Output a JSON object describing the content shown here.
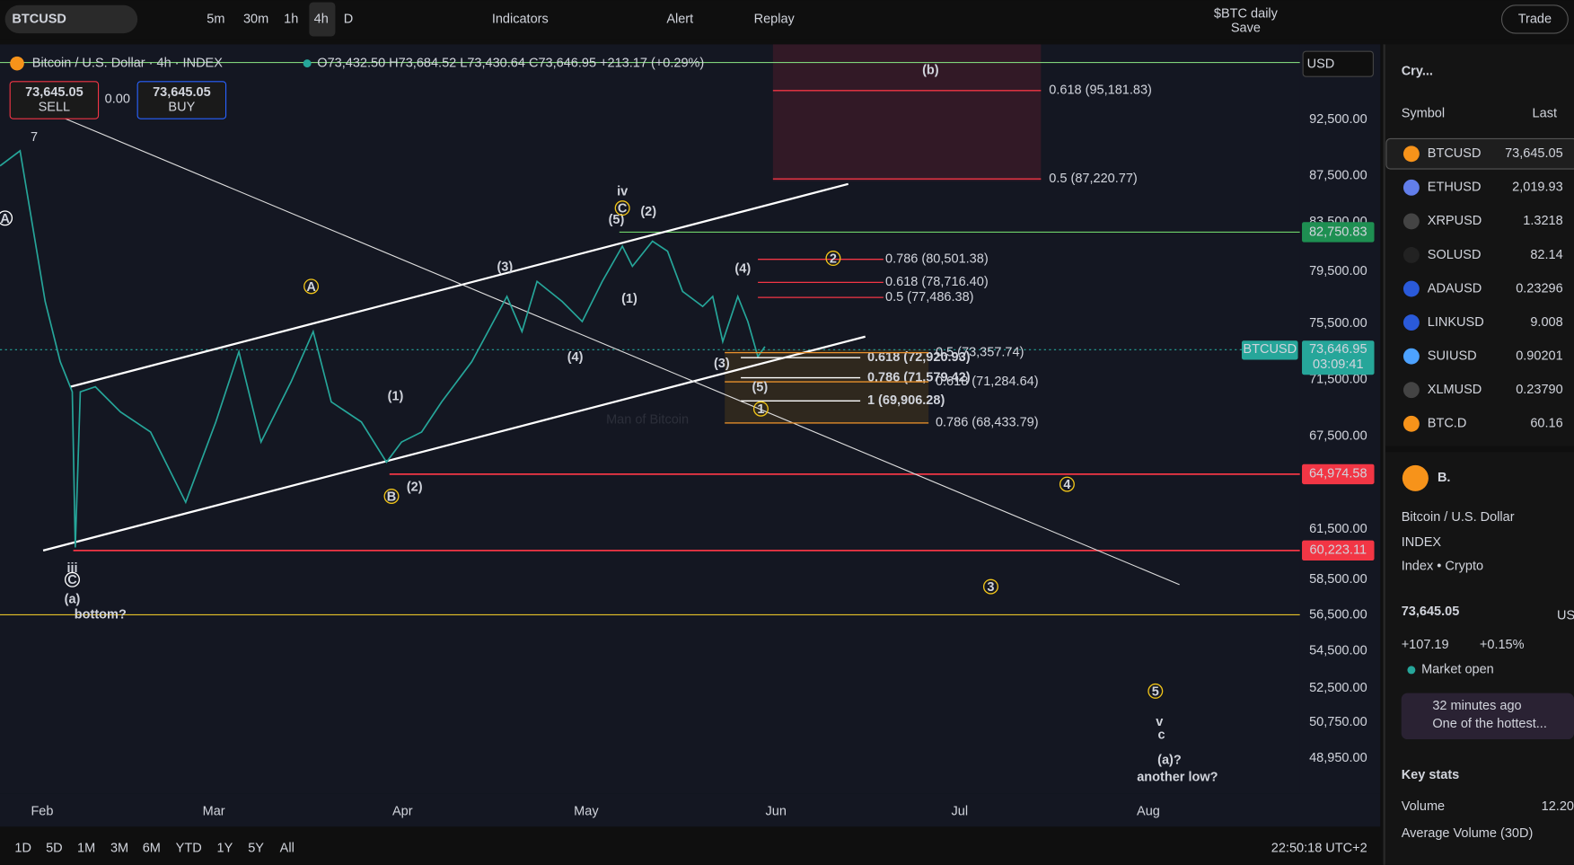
{
  "toolbar": {
    "symbol": "BTCUSD",
    "intervals": [
      "5m",
      "30m",
      "1h",
      "4h",
      "D"
    ],
    "indicators": "Indicators",
    "alert": "Alert",
    "replay": "Replay",
    "layout_name": "$BTC daily",
    "save": "Save",
    "trade": "Trade"
  },
  "legend": {
    "title": "Bitcoin / U.S. Dollar · 4h · INDEX",
    "ohlc": "O73,432.50 H73,684.52 L73,430.64 C73,646.95 +213.17 (+0.29%)",
    "sell_price": "73,645.05",
    "sell": "SELL",
    "spread": "0.00",
    "buy_price": "73,645.05",
    "buy": "BUY",
    "indicator_count": "7"
  },
  "currency": "USD",
  "price_axis": [
    "92,500.00",
    "87,500.00",
    "83,500.00",
    "79,500.00",
    "75,500.00",
    "71,500.00",
    "67,500.00",
    "61,500.00",
    "58,500.00",
    "56,500.00",
    "54,500.00",
    "52,500.00",
    "50,750.00",
    "48,950.00"
  ],
  "price_tags": [
    "82,750.83",
    "64,974.58",
    "60,223.11"
  ],
  "current": {
    "symbol": "BTCUSD",
    "price": "73,646.95",
    "countdown": "03:09:41"
  },
  "time_axis": [
    "Feb",
    "Mar",
    "Apr",
    "May",
    "Jun",
    "Jul",
    "Aug"
  ],
  "fib_levels": [
    "0.618 (95,181.83)",
    "0.5 (87,220.77)",
    "0.786 (80,501.38)",
    "0.618 (78,716.40)",
    "0.5 (77,486.38)",
    "0.618 (72,920.93)",
    "0.786 (71,579.42)",
    "1 (69,906.28)",
    "0.5 (73,357.74)",
    "0.618 (71,284.64)",
    "0.786 (68,433.79)"
  ],
  "wave_labels": [
    "(3)",
    "(1)",
    "(2)",
    "(4)",
    "(5)",
    "(2)",
    "(4)",
    "(1)",
    "(3)",
    "(5)",
    "iv",
    "(b)",
    "iii",
    "(a)",
    "bottom?",
    "v",
    "c",
    "(a)?",
    "another low?"
  ],
  "circled_labels": [
    "A",
    "B",
    "C",
    "2",
    "4",
    "3",
    "5",
    "1",
    "A",
    "C"
  ],
  "watermark": "Man of Bitcoin",
  "ranges": [
    "1D",
    "5D",
    "1M",
    "3M",
    "6M",
    "YTD",
    "1Y",
    "5Y",
    "All"
  ],
  "clock": "22:50:18 UTC+2",
  "watchlist": {
    "title": "Cry...",
    "columns": [
      "Symbol",
      "Last"
    ],
    "rows": [
      [
        "BTCUSD",
        "73,645.05"
      ],
      [
        "ETHUSD",
        "2,019.93"
      ],
      [
        "XRPUSD",
        "1.3218"
      ],
      [
        "SOLUSD",
        "82.14"
      ],
      [
        "ADAUSD",
        "0.23296"
      ],
      [
        "LINKUSD",
        "9.008"
      ],
      [
        "SUIUSD",
        "0.90201"
      ],
      [
        "XLMUSD",
        "0.23790"
      ],
      [
        "BTC.D",
        "60.16"
      ]
    ]
  },
  "details": {
    "short": "B.",
    "name": "Bitcoin / U.S. Dollar",
    "exchange": "INDEX",
    "kind": "Index • Crypto",
    "price": "73,645.05",
    "currency": "US",
    "change": "+107.19",
    "change_pct": "+0.15%",
    "status": "Market open",
    "news_time": "32 minutes ago",
    "news": "One of the hottest...",
    "key_stats": "Key stats",
    "volume": "Volume",
    "volume_value": "12.20",
    "avg_volume": "Average Volume (30D)"
  }
}
